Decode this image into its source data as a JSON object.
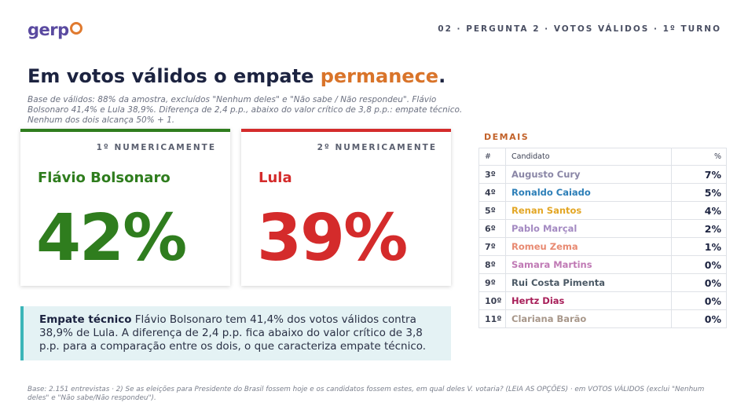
{
  "logo": {
    "text": "gerp"
  },
  "section_label": "02 · PERGUNTA 2 · VOTOS VÁLIDOS · 1º TURNO",
  "headline": {
    "main": "Em votos válidos o empate ",
    "accent": "permanece",
    "end": "."
  },
  "subtitle": "Base de válidos: 88% da amostra, excluídos \"Nenhum deles\" e \"Não sabe / Não respondeu\". Flávio Bolsonaro 41,4% e Lula 38,9%. Diferença de 2,4 p.p., abaixo do valor crítico de 3,8 p.p.: empate técnico. Nenhum dos dois alcança 50% + 1.",
  "cards": [
    {
      "rank": "1º NUMERICAMENTE",
      "name": "Flávio Bolsonaro",
      "value": "42%",
      "color": "#2f7d1e"
    },
    {
      "rank": "2º NUMERICAMENTE",
      "name": "Lula",
      "value": "39%",
      "color": "#d42b2b"
    }
  ],
  "callout": {
    "title": "Empate técnico",
    "text": " Flávio Bolsonaro tem 41,4% dos votos válidos contra 38,9% de Lula. A diferença de 2,4 p.p. fica abaixo do valor crítico de 3,8 p.p. para a comparação entre os dois, o que caracteriza empate técnico."
  },
  "demais": {
    "title": "DEMAIS",
    "headers": {
      "num": "#",
      "name": "Candidato",
      "pct": "%"
    },
    "rows": [
      {
        "num": "3º",
        "name": "Augusto Cury",
        "pct": "7%",
        "color": "#8a86a6"
      },
      {
        "num": "4º",
        "name": "Ronaldo Caiado",
        "pct": "5%",
        "color": "#2d7fb8"
      },
      {
        "num": "5º",
        "name": "Renan Santos",
        "pct": "4%",
        "color": "#e3a624"
      },
      {
        "num": "6º",
        "name": "Pablo Marçal",
        "pct": "2%",
        "color": "#a48ac2"
      },
      {
        "num": "7º",
        "name": "Romeu Zema",
        "pct": "1%",
        "color": "#e88a72"
      },
      {
        "num": "8º",
        "name": "Samara Martins",
        "pct": "0%",
        "color": "#c07ab5"
      },
      {
        "num": "9º",
        "name": "Rui Costa Pimenta",
        "pct": "0%",
        "color": "#4c5a66"
      },
      {
        "num": "10º",
        "name": "Hertz Dias",
        "pct": "0%",
        "color": "#a8205a"
      },
      {
        "num": "11º",
        "name": "Clariana Barão",
        "pct": "0%",
        "color": "#a8978a"
      }
    ]
  },
  "footnote": "Base: 2.151 entrevistas · 2) Se as eleições para Presidente do Brasil fossem hoje e os candidatos fossem estes, em qual deles V. votaria? (LEIA AS OPÇÕES) · em VOTOS VÁLIDOS (exclui \"Nenhum deles\" e \"Não sabe/Não respondeu\")."
}
